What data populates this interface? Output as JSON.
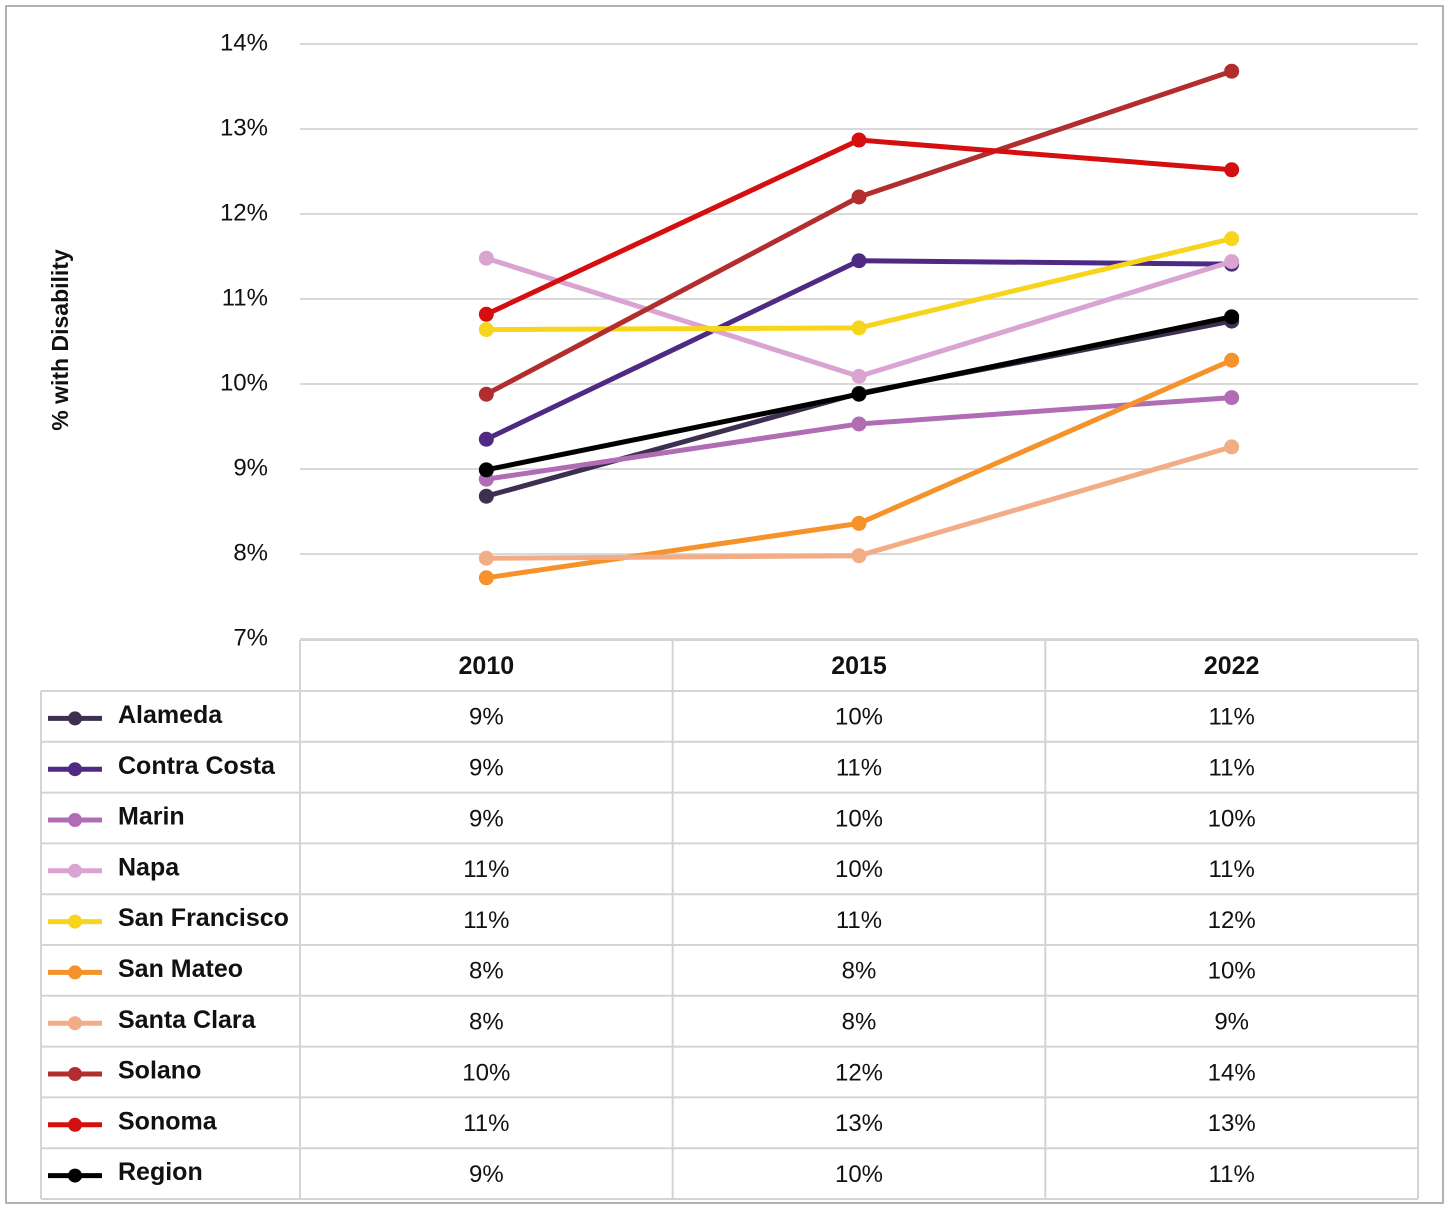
{
  "chart_data": {
    "type": "line",
    "y_label": "% with Disability",
    "categories": [
      "2010",
      "2015",
      "2022"
    ],
    "ylim": [
      7,
      14
    ],
    "yticks": [
      {
        "value": 7,
        "label": "7%"
      },
      {
        "value": 8,
        "label": "8%"
      },
      {
        "value": 9,
        "label": "9%"
      },
      {
        "value": 10,
        "label": "10%"
      },
      {
        "value": 11,
        "label": "11%"
      },
      {
        "value": 12,
        "label": "12%"
      },
      {
        "value": 13,
        "label": "13%"
      },
      {
        "value": 14,
        "label": "14%"
      }
    ],
    "grid": true,
    "series": [
      {
        "name": "Alameda",
        "color": "#3d2f4f",
        "values": [
          8.68,
          9.89,
          10.74
        ],
        "value_labels": [
          "9%",
          "10%",
          "11%"
        ]
      },
      {
        "name": "Contra Costa",
        "color": "#4e2a84",
        "values": [
          9.35,
          11.45,
          11.41
        ],
        "value_labels": [
          "9%",
          "11%",
          "11%"
        ]
      },
      {
        "name": "Marin",
        "color": "#b06cb4",
        "values": [
          8.88,
          9.53,
          9.84
        ],
        "value_labels": [
          "9%",
          "10%",
          "10%"
        ]
      },
      {
        "name": "Napa",
        "color": "#d9a3d2",
        "values": [
          11.48,
          10.09,
          11.44
        ],
        "value_labels": [
          "11%",
          "10%",
          "11%"
        ]
      },
      {
        "name": "San Francisco",
        "color": "#f7d51d",
        "values": [
          10.64,
          10.66,
          11.71
        ],
        "value_labels": [
          "11%",
          "11%",
          "12%"
        ]
      },
      {
        "name": "San Mateo",
        "color": "#f5922a",
        "values": [
          7.72,
          8.36,
          10.28
        ],
        "value_labels": [
          "8%",
          "8%",
          "10%"
        ]
      },
      {
        "name": "Santa Clara",
        "color": "#f2ad87",
        "values": [
          7.95,
          7.98,
          9.26
        ],
        "value_labels": [
          "8%",
          "8%",
          "9%"
        ]
      },
      {
        "name": "Solano",
        "color": "#b22e2e",
        "values": [
          9.88,
          12.2,
          13.68
        ],
        "value_labels": [
          "10%",
          "12%",
          "14%"
        ]
      },
      {
        "name": "Sonoma",
        "color": "#d50f0f",
        "values": [
          10.82,
          12.87,
          12.52
        ],
        "value_labels": [
          "11%",
          "13%",
          "13%"
        ]
      },
      {
        "name": "Region",
        "color": "#000000",
        "values": [
          8.99,
          9.88,
          10.79
        ],
        "value_labels": [
          "9%",
          "10%",
          "11%"
        ]
      }
    ]
  }
}
